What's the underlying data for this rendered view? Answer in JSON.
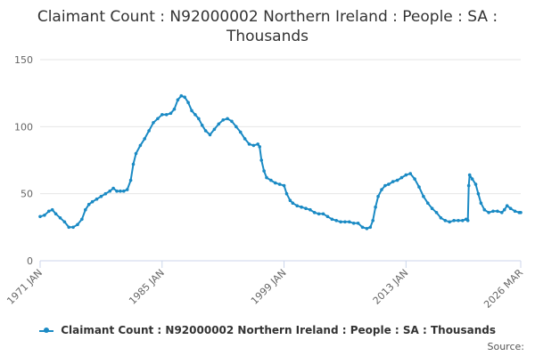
{
  "title": "Claimant Count : N92000002 Northern Ireland : People : SA : Thousands",
  "source_label": "Source:",
  "colors": {
    "series": "#1a8ac4",
    "grid": "#e6e6e6",
    "axis": "#ccd6eb"
  },
  "chart_data": {
    "type": "line",
    "title": "Claimant Count : N92000002 Northern Ireland : People : SA : Thousands",
    "xlabel": "",
    "ylabel": "",
    "x_range": [
      1971.0,
      2026.17
    ],
    "ylim": [
      0,
      150
    ],
    "yticks": [
      0,
      50,
      100,
      150
    ],
    "xtick_labels": [
      {
        "label": "1971 JAN",
        "x": 1971.0
      },
      {
        "label": "1985 JAN",
        "x": 1985.0
      },
      {
        "label": "1999 JAN",
        "x": 1999.0
      },
      {
        "label": "2013 JAN",
        "x": 2013.0
      },
      {
        "label": "2026 MAR",
        "x": 2026.17
      }
    ],
    "series": [
      {
        "name": "Claimant Count : N92000002 Northern Ireland : People : SA : Thousands",
        "points": [
          [
            1971.0,
            33
          ],
          [
            1971.5,
            34
          ],
          [
            1972.0,
            37
          ],
          [
            1972.4,
            38
          ],
          [
            1972.8,
            35
          ],
          [
            1973.3,
            32
          ],
          [
            1973.8,
            29
          ],
          [
            1974.3,
            25
          ],
          [
            1974.8,
            25
          ],
          [
            1975.3,
            27
          ],
          [
            1975.8,
            31
          ],
          [
            1976.2,
            38
          ],
          [
            1976.6,
            42
          ],
          [
            1977.0,
            44
          ],
          [
            1977.5,
            46
          ],
          [
            1978.0,
            48
          ],
          [
            1978.5,
            50
          ],
          [
            1979.0,
            52
          ],
          [
            1979.4,
            54
          ],
          [
            1979.8,
            52
          ],
          [
            1980.2,
            52
          ],
          [
            1980.6,
            52
          ],
          [
            1981.0,
            53
          ],
          [
            1981.4,
            60
          ],
          [
            1981.7,
            72
          ],
          [
            1982.0,
            80
          ],
          [
            1982.5,
            86
          ],
          [
            1983.0,
            91
          ],
          [
            1983.5,
            97
          ],
          [
            1984.0,
            103
          ],
          [
            1984.5,
            106
          ],
          [
            1985.0,
            109
          ],
          [
            1985.5,
            109
          ],
          [
            1986.0,
            110
          ],
          [
            1986.4,
            113
          ],
          [
            1986.8,
            120
          ],
          [
            1987.2,
            123
          ],
          [
            1987.6,
            122
          ],
          [
            1988.0,
            118
          ],
          [
            1988.4,
            112
          ],
          [
            1988.8,
            109
          ],
          [
            1989.2,
            106
          ],
          [
            1989.6,
            101
          ],
          [
            1990.0,
            97
          ],
          [
            1990.5,
            94
          ],
          [
            1991.0,
            98
          ],
          [
            1991.5,
            102
          ],
          [
            1992.0,
            105
          ],
          [
            1992.5,
            106
          ],
          [
            1993.0,
            104
          ],
          [
            1993.5,
            100
          ],
          [
            1994.0,
            96
          ],
          [
            1994.5,
            91
          ],
          [
            1995.0,
            87
          ],
          [
            1995.5,
            86
          ],
          [
            1996.0,
            87
          ],
          [
            1996.2,
            85
          ],
          [
            1996.4,
            75
          ],
          [
            1996.7,
            67
          ],
          [
            1997.0,
            62
          ],
          [
            1997.5,
            60
          ],
          [
            1998.0,
            58
          ],
          [
            1998.5,
            57
          ],
          [
            1999.0,
            56
          ],
          [
            1999.3,
            50
          ],
          [
            1999.7,
            45
          ],
          [
            2000.0,
            43
          ],
          [
            2000.5,
            41
          ],
          [
            2001.0,
            40
          ],
          [
            2001.5,
            39
          ],
          [
            2002.0,
            38
          ],
          [
            2002.5,
            36
          ],
          [
            2003.0,
            35
          ],
          [
            2003.5,
            35
          ],
          [
            2004.0,
            33
          ],
          [
            2004.5,
            31
          ],
          [
            2005.0,
            30
          ],
          [
            2005.5,
            29
          ],
          [
            2006.0,
            29
          ],
          [
            2006.5,
            29
          ],
          [
            2007.0,
            28
          ],
          [
            2007.5,
            28
          ],
          [
            2008.0,
            25
          ],
          [
            2008.5,
            24
          ],
          [
            2008.9,
            25
          ],
          [
            2009.2,
            30
          ],
          [
            2009.5,
            40
          ],
          [
            2009.8,
            48
          ],
          [
            2010.2,
            53
          ],
          [
            2010.6,
            56
          ],
          [
            2011.0,
            57
          ],
          [
            2011.5,
            59
          ],
          [
            2012.0,
            60
          ],
          [
            2012.5,
            62
          ],
          [
            2013.0,
            64
          ],
          [
            2013.5,
            65
          ],
          [
            2014.0,
            61
          ],
          [
            2014.5,
            55
          ],
          [
            2015.0,
            48
          ],
          [
            2015.5,
            43
          ],
          [
            2016.0,
            39
          ],
          [
            2016.5,
            36
          ],
          [
            2017.0,
            32
          ],
          [
            2017.5,
            30
          ],
          [
            2018.0,
            29
          ],
          [
            2018.5,
            30
          ],
          [
            2019.0,
            30
          ],
          [
            2019.5,
            30
          ],
          [
            2019.9,
            31
          ],
          [
            2020.1,
            30
          ],
          [
            2020.2,
            56
          ],
          [
            2020.3,
            64
          ],
          [
            2020.6,
            61
          ],
          [
            2021.0,
            57
          ],
          [
            2021.3,
            50
          ],
          [
            2021.6,
            43
          ],
          [
            2022.0,
            38
          ],
          [
            2022.5,
            36
          ],
          [
            2023.0,
            37
          ],
          [
            2023.5,
            37
          ],
          [
            2024.0,
            36
          ],
          [
            2024.3,
            38
          ],
          [
            2024.6,
            41
          ],
          [
            2025.0,
            39
          ],
          [
            2025.5,
            37
          ],
          [
            2026.0,
            36
          ],
          [
            2026.17,
            36
          ]
        ]
      }
    ]
  }
}
